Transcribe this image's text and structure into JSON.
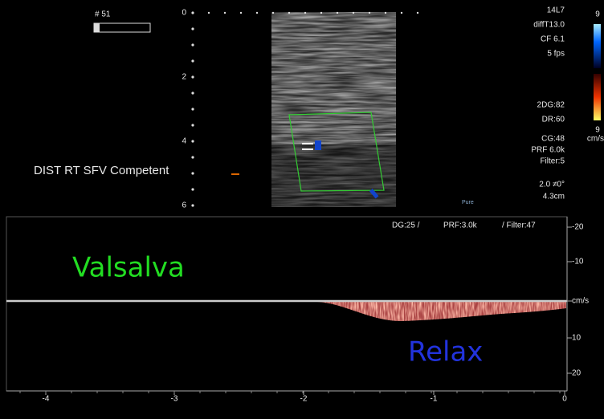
{
  "header": {
    "frame": "# 51",
    "probe": "14L7",
    "mode": "diffT13.0",
    "cf": "CF 6.1",
    "fps": "5 fps",
    "color_top": "9",
    "color_bottom": "9",
    "color_unit": "cm/s"
  },
  "depth_scale": [
    "0",
    "2",
    "4",
    "6"
  ],
  "settings": [
    "2DG:82",
    "DR:60",
    "CG:48",
    "PRF 6.0k",
    "Filter:5",
    "2.0  ≠0°",
    "4.3cm"
  ],
  "annotation": "DIST RT SFV Competent",
  "logo": "Pure",
  "doppler": {
    "settings": [
      "DG:25 /",
      "PRF:3.0k",
      "/ Filter:47"
    ],
    "velocity_scale": [
      "-20",
      "-10",
      "cm/s",
      "10",
      "20"
    ],
    "time_scale": [
      "-4",
      "-3",
      "-2",
      "-1",
      "0"
    ],
    "labels": [
      "Valsalva",
      "Relax"
    ]
  }
}
